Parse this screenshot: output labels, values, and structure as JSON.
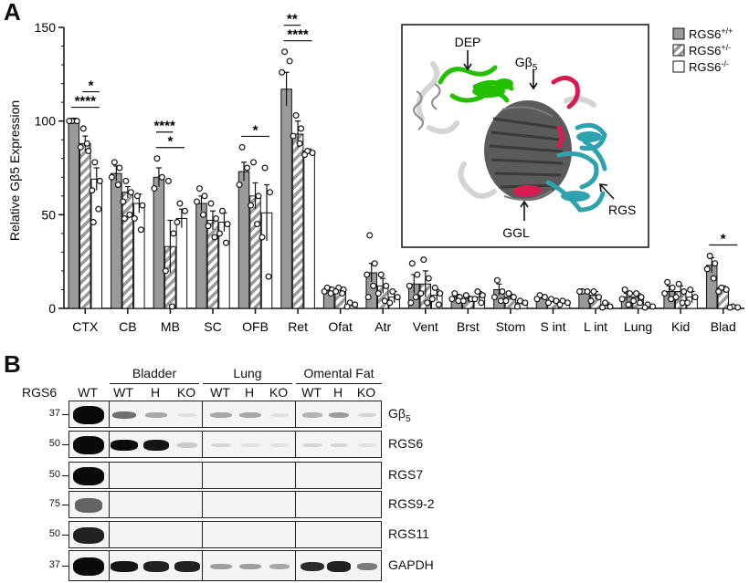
{
  "panel_a_letter": "A",
  "panel_b_letter": "B",
  "chart_data": {
    "type": "bar",
    "ylabel": "Relative Gβ5 Expression",
    "ylim": [
      0,
      150
    ],
    "yticks": [
      0,
      50,
      100,
      150
    ],
    "categories": [
      "CTX",
      "CB",
      "MB",
      "SC",
      "OFB",
      "Ret",
      "Ofat",
      "Atr",
      "Vent",
      "Brst",
      "Stom",
      "S int",
      "L int",
      "Lung",
      "Kid",
      "Blad"
    ],
    "series": [
      {
        "name": "RGS6+/+",
        "style": "solid",
        "color": "#9a9a9a",
        "values": [
          100,
          72,
          70,
          56,
          73,
          117,
          10,
          19,
          13,
          6,
          10,
          6,
          9,
          6,
          9,
          23
        ],
        "errors": [
          1.5,
          4,
          5,
          4,
          5,
          9,
          1.5,
          5,
          5,
          1.5,
          3,
          1,
          1,
          2,
          3,
          4
        ]
      },
      {
        "name": "RGS6+/-",
        "style": "hatched",
        "color": "#9a9a9a",
        "values": [
          88,
          62,
          33,
          47,
          60,
          93,
          10,
          12,
          13,
          5,
          6,
          4,
          7,
          6,
          9,
          11
        ],
        "errors": [
          4,
          3,
          14,
          5,
          7,
          7,
          1,
          4,
          7,
          1.5,
          1.5,
          1,
          2,
          2,
          3,
          1
        ]
      },
      {
        "name": "RGS6-/-",
        "style": "open",
        "color": "#ffffff",
        "values": [
          69,
          56,
          48,
          46,
          51,
          84,
          2,
          6,
          7,
          6,
          3,
          3,
          2,
          1,
          6,
          1
        ],
        "errors": [
          6,
          5,
          5,
          5,
          15,
          1,
          1,
          3,
          3,
          3,
          1,
          0.5,
          1,
          0.5,
          3,
          0.5
        ]
      }
    ],
    "points": [
      [
        [
          100,
          100,
          100
        ],
        [
          96,
          84,
          86,
          88
        ],
        [
          78,
          68,
          63,
          53,
          46
        ]
      ],
      [
        [
          78,
          75,
          70,
          66
        ],
        [
          68,
          62,
          57,
          50,
          48
        ],
        [
          60,
          55,
          48,
          42
        ]
      ],
      [
        [
          80,
          70,
          64
        ],
        [
          68,
          40,
          20,
          1
        ],
        [
          56,
          52,
          46
        ]
      ],
      [
        [
          64,
          60,
          57,
          50
        ],
        [
          56,
          48,
          44,
          38
        ],
        [
          52,
          45,
          40,
          35
        ]
      ],
      [
        [
          86,
          75,
          66
        ],
        [
          78,
          60,
          55,
          45
        ],
        [
          75,
          62,
          38,
          17
        ]
      ],
      [
        [
          137,
          132,
          126
        ],
        [
          103,
          96,
          92,
          88
        ],
        [
          84,
          83,
          82
        ]
      ],
      [
        [
          11,
          10,
          9,
          8
        ],
        [
          11,
          10,
          9,
          8
        ],
        [
          3,
          2,
          1
        ]
      ],
      [
        [
          39,
          24,
          18,
          12,
          6
        ],
        [
          18,
          12,
          8,
          4
        ],
        [
          9,
          6,
          3
        ]
      ],
      [
        [
          24,
          18,
          12,
          6,
          3
        ],
        [
          26,
          16,
          8,
          3
        ],
        [
          11,
          8,
          5,
          2
        ]
      ],
      [
        [
          8,
          6,
          5,
          4
        ],
        [
          7,
          5,
          4
        ],
        [
          9,
          7,
          5,
          3
        ]
      ],
      [
        [
          15,
          9,
          6,
          4
        ],
        [
          8,
          6,
          4
        ],
        [
          4,
          3,
          1
        ]
      ],
      [
        [
          7,
          6,
          5
        ],
        [
          5,
          4,
          3
        ],
        [
          4,
          3,
          2
        ]
      ],
      [
        [
          9,
          9,
          9
        ],
        [
          9,
          6,
          4
        ],
        [
          3,
          1,
          0.5
        ]
      ],
      [
        [
          10,
          8,
          5,
          2
        ],
        [
          8,
          6,
          4,
          3
        ],
        [
          2,
          1,
          0.5
        ]
      ],
      [
        [
          14,
          11,
          8,
          5
        ],
        [
          13,
          9,
          6,
          3
        ],
        [
          10,
          6,
          3
        ]
      ],
      [
        [
          28,
          24,
          21,
          16
        ],
        [
          11,
          10,
          9
        ],
        [
          1,
          0.5,
          0.5
        ]
      ]
    ],
    "significance": [
      {
        "category": "CTX",
        "from": 0,
        "to": 2,
        "label": "****"
      },
      {
        "category": "CTX",
        "from": 1,
        "to": 2,
        "label": "*"
      },
      {
        "category": "MB",
        "from": 0,
        "to": 2,
        "label": "*"
      },
      {
        "category": "MB",
        "from": 0,
        "to": 1,
        "label": "****"
      },
      {
        "category": "OFB",
        "from": 0,
        "to": 2,
        "label": "*"
      },
      {
        "category": "Ret",
        "from": 0,
        "to": 2,
        "label": "****"
      },
      {
        "category": "Ret",
        "from": 0,
        "to": 1,
        "label": "**"
      },
      {
        "category": "Blad",
        "from": 0,
        "to": 2,
        "label": "*"
      }
    ],
    "legend_placement": "top-right",
    "legend": [
      {
        "base": "RGS6",
        "sup": "+/+"
      },
      {
        "base": "RGS6",
        "sup": "+/-"
      },
      {
        "base": "RGS6",
        "sup": "-/-"
      }
    ]
  },
  "structure_inset": {
    "labels": {
      "dep": "DEP",
      "gb5_base": "Gβ",
      "gb5_sub": "5",
      "rgs": "RGS",
      "ggl": "GGL"
    },
    "colors": {
      "dep": "#22c000",
      "gb5": "#555555",
      "rgs": "#2fa3ad",
      "ggl": "#d81b50",
      "other": "#d6d6d6"
    }
  },
  "blot": {
    "rgs6_header": "RGS6",
    "lane_labels": [
      "WT",
      "WT",
      "H",
      "KO",
      "WT",
      "H",
      "KO",
      "WT",
      "H",
      "KO"
    ],
    "groups": [
      "Bladder",
      "Lung",
      "Omental Fat"
    ],
    "rows": [
      {
        "label": "Gβ",
        "label_sub": "5",
        "mw": "37",
        "intensities": [
          1.0,
          0.55,
          0.3,
          0.05,
          0.3,
          0.3,
          0.05,
          0.25,
          0.35,
          0.1
        ]
      },
      {
        "label": "RGS6",
        "label_sub": "",
        "mw": "50",
        "intensities": [
          1.0,
          1.0,
          0.95,
          0.15,
          0.1,
          0.05,
          0.05,
          0.1,
          0.1,
          0.05
        ]
      },
      {
        "label": "RGS7",
        "label_sub": "",
        "mw": "50",
        "intensities": [
          1.0,
          0,
          0,
          0,
          0,
          0,
          0,
          0,
          0,
          0
        ]
      },
      {
        "label": "RGS9-2",
        "label_sub": "",
        "mw": "75",
        "intensities": [
          0.6,
          0,
          0,
          0,
          0,
          0,
          0,
          0,
          0,
          0
        ]
      },
      {
        "label": "RGS11",
        "label_sub": "",
        "mw": "50",
        "intensities": [
          0.9,
          0,
          0,
          0,
          0,
          0,
          0,
          0,
          0,
          0
        ]
      },
      {
        "label": "GAPDH",
        "label_sub": "",
        "mw": "37",
        "intensities": [
          1.0,
          0.95,
          0.9,
          0.9,
          0.35,
          0.35,
          0.3,
          0.85,
          0.9,
          0.5
        ]
      }
    ]
  }
}
